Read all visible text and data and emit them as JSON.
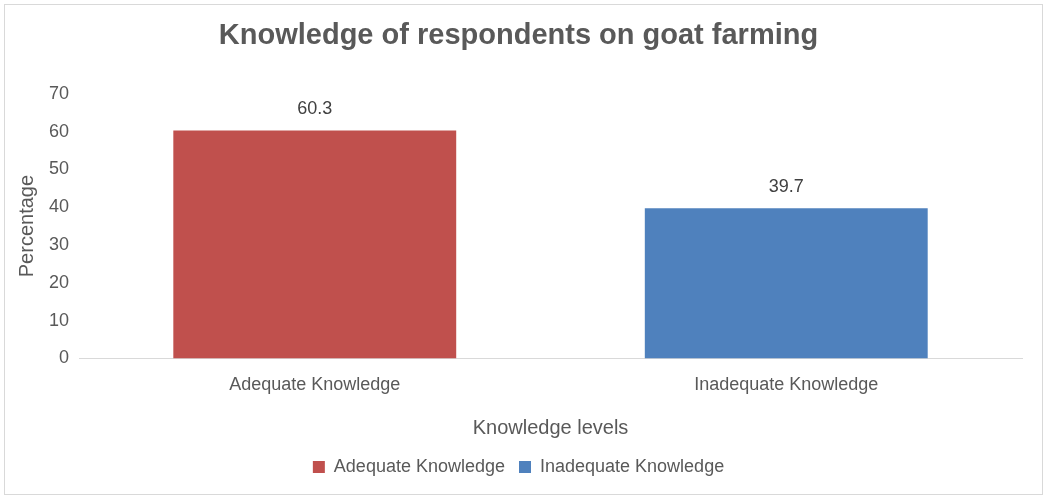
{
  "chart_data": {
    "type": "bar",
    "title": "Knowledge of respondents on goat farming",
    "xlabel": "Knowledge levels",
    "ylabel": "Percentage",
    "categories": [
      "Adequate Knowledge",
      "Inadequate Knowledge"
    ],
    "series": [
      {
        "name": "Adequate Knowledge",
        "color": "#c0504d",
        "values": [
          60.3,
          null
        ]
      },
      {
        "name": "Inadequate Knowledge",
        "color": "#4f81bd",
        "values": [
          null,
          39.7
        ]
      }
    ],
    "ylim": [
      0,
      70
    ],
    "yticks": [
      0,
      10,
      20,
      30,
      40,
      50,
      60,
      70
    ],
    "grid": false,
    "legend": "bottom",
    "data_labels": true
  }
}
